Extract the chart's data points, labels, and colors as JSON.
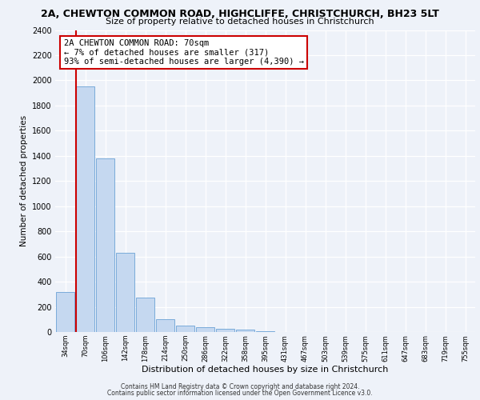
{
  "title1": "2A, CHEWTON COMMON ROAD, HIGHCLIFFE, CHRISTCHURCH, BH23 5LT",
  "title2": "Size of property relative to detached houses in Christchurch",
  "xlabel": "Distribution of detached houses by size in Christchurch",
  "ylabel": "Number of detached properties",
  "bar_labels": [
    "34sqm",
    "70sqm",
    "106sqm",
    "142sqm",
    "178sqm",
    "214sqm",
    "250sqm",
    "286sqm",
    "322sqm",
    "358sqm",
    "395sqm",
    "431sqm",
    "467sqm",
    "503sqm",
    "539sqm",
    "575sqm",
    "611sqm",
    "647sqm",
    "683sqm",
    "719sqm",
    "755sqm"
  ],
  "bar_values": [
    315,
    1950,
    1380,
    630,
    275,
    100,
    50,
    35,
    28,
    20,
    5,
    3,
    2,
    1,
    1,
    1,
    1,
    1,
    1,
    1,
    1
  ],
  "bar_color": "#c5d8f0",
  "bar_edge_color": "#7aabda",
  "highlight_bar_index": 1,
  "highlight_color": "#cc0000",
  "ylim": [
    0,
    2400
  ],
  "yticks": [
    0,
    200,
    400,
    600,
    800,
    1000,
    1200,
    1400,
    1600,
    1800,
    2000,
    2200,
    2400
  ],
  "annotation_text": "2A CHEWTON COMMON ROAD: 70sqm\n← 7% of detached houses are smaller (317)\n93% of semi-detached houses are larger (4,390) →",
  "annotation_box_color": "#ffffff",
  "annotation_border_color": "#cc0000",
  "footer1": "Contains HM Land Registry data © Crown copyright and database right 2024.",
  "footer2": "Contains public sector information licensed under the Open Government Licence v3.0.",
  "bg_color": "#eef2f9",
  "plot_bg_color": "#eef2f9",
  "grid_color": "#ffffff"
}
